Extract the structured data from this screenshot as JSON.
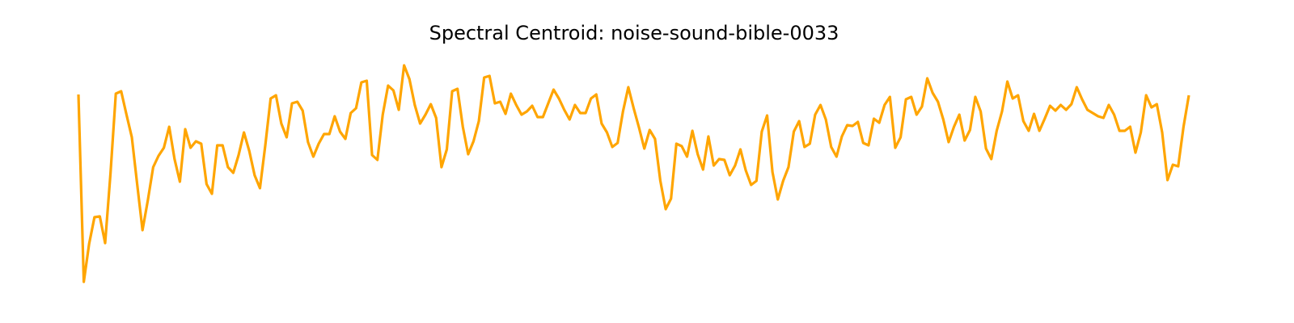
{
  "chart_data": {
    "type": "line",
    "title": "Spectral Centroid: noise-sound-bible-0033",
    "color": "#ffa500",
    "ylim": [
      0,
      290
    ],
    "values": [
      243,
      11,
      58,
      91,
      92,
      59,
      145,
      244,
      247,
      218,
      190,
      132,
      75,
      112,
      153,
      167,
      177,
      203,
      163,
      135,
      200,
      177,
      185,
      182,
      132,
      120,
      180,
      180,
      153,
      146,
      168,
      196,
      173,
      143,
      127,
      180,
      238,
      242,
      207,
      190,
      232,
      234,
      223,
      184,
      166,
      182,
      194,
      194,
      216,
      197,
      188,
      220,
      226,
      258,
      260,
      168,
      162,
      218,
      254,
      248,
      224,
      279,
      262,
      230,
      207,
      218,
      231,
      214,
      153,
      175,
      247,
      250,
      203,
      169,
      185,
      210,
      264,
      266,
      232,
      234,
      219,
      244,
      230,
      218,
      222,
      229,
      215,
      215,
      232,
      249,
      238,
      224,
      212,
      230,
      220,
      220,
      238,
      243,
      207,
      196,
      178,
      183,
      222,
      252,
      226,
      202,
      176,
      199,
      188,
      136,
      101,
      114,
      182,
      179,
      166,
      198,
      169,
      150,
      191,
      155,
      163,
      162,
      143,
      155,
      175,
      149,
      131,
      136,
      197,
      217,
      147,
      113,
      136,
      153,
      197,
      210,
      178,
      182,
      218,
      230,
      212,
      178,
      166,
      191,
      205,
      204,
      209,
      183,
      180,
      213,
      208,
      230,
      240,
      177,
      190,
      237,
      240,
      218,
      228,
      263,
      245,
      234,
      212,
      184,
      203,
      218,
      186,
      199,
      240,
      222,
      176,
      163,
      198,
      222,
      259,
      238,
      242,
      210,
      198,
      219,
      198,
      213,
      229,
      223,
      230,
      224,
      231,
      252,
      237,
      224,
      220,
      216,
      214,
      230,
      218,
      198,
      198,
      203,
      171,
      196,
      242,
      227,
      231,
      196,
      137,
      156,
      154,
      203,
      242
    ]
  }
}
